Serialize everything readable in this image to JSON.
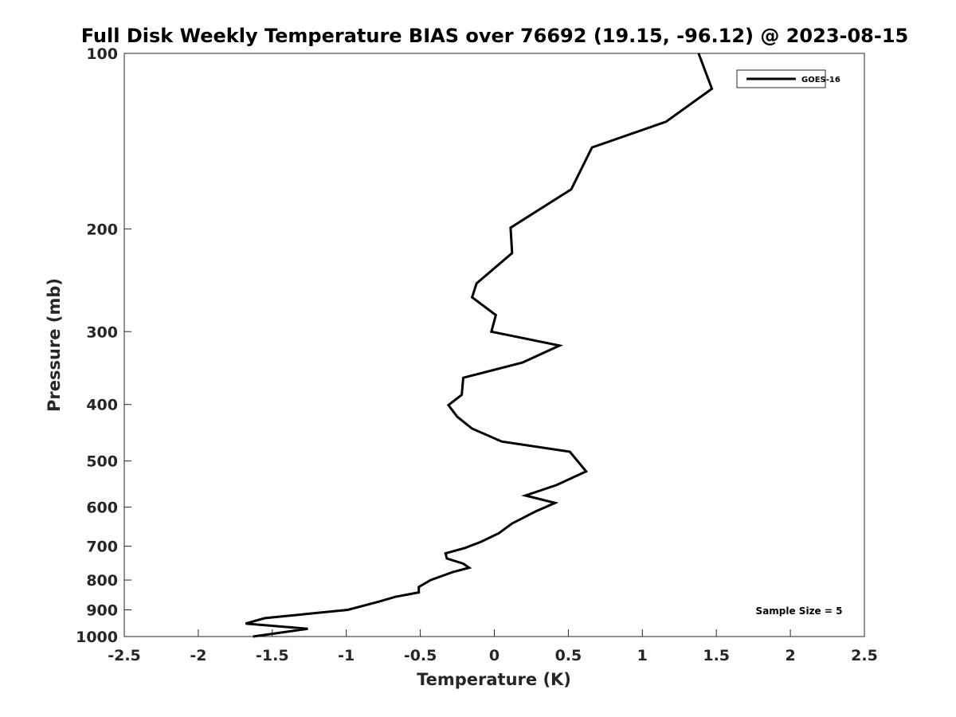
{
  "chart_data": {
    "type": "line",
    "title": "Full Disk Weekly Temperature BIAS over 76692 (19.15, -96.12) @ 2023-08-15",
    "xlabel": "Temperature (K)",
    "ylabel": "Pressure (mb)",
    "xlim": [
      -2.5,
      2.5
    ],
    "ylim": [
      1000,
      100
    ],
    "y_scale": "log",
    "y_reversed": true,
    "x_ticks": [
      -2.5,
      -2,
      -1.5,
      -1,
      -0.5,
      0,
      0.5,
      1,
      1.5,
      2,
      2.5
    ],
    "x_tick_labels": [
      "-2.5",
      "-2",
      "-1.5",
      "-1",
      "-0.5",
      "0",
      "0.5",
      "1",
      "1.5",
      "2",
      "2.5"
    ],
    "y_ticks": [
      100,
      200,
      300,
      400,
      500,
      600,
      700,
      800,
      900,
      1000
    ],
    "y_tick_labels": [
      "100",
      "200",
      "300",
      "400",
      "500",
      "600",
      "700",
      "800",
      "900",
      "1000"
    ],
    "grid": false,
    "legend_position": "top-right",
    "series": [
      {
        "name": "GOES-16",
        "color": "#000000",
        "points": [
          [
            1.38,
            100
          ],
          [
            1.47,
            115
          ],
          [
            1.16,
            131
          ],
          [
            0.66,
            145
          ],
          [
            0.52,
            171
          ],
          [
            0.11,
            199
          ],
          [
            0.12,
            220
          ],
          [
            -0.12,
            248
          ],
          [
            -0.15,
            262
          ],
          [
            0.01,
            281
          ],
          [
            -0.02,
            300
          ],
          [
            0.44,
            317
          ],
          [
            0.19,
            339
          ],
          [
            -0.21,
            360
          ],
          [
            -0.22,
            385
          ],
          [
            -0.31,
            401
          ],
          [
            -0.25,
            420
          ],
          [
            -0.15,
            440
          ],
          [
            0.05,
            463
          ],
          [
            0.51,
            482
          ],
          [
            0.62,
            521
          ],
          [
            0.42,
            550
          ],
          [
            0.21,
            573
          ],
          [
            0.41,
            590
          ],
          [
            0.28,
            610
          ],
          [
            0.12,
            640
          ],
          [
            0.03,
            665
          ],
          [
            -0.09,
            688
          ],
          [
            -0.2,
            705
          ],
          [
            -0.33,
            720
          ],
          [
            -0.32,
            735
          ],
          [
            -0.21,
            750
          ],
          [
            -0.17,
            762
          ],
          [
            -0.28,
            775
          ],
          [
            -0.43,
            800
          ],
          [
            -0.51,
            822
          ],
          [
            -0.51,
            840
          ],
          [
            -0.67,
            855
          ],
          [
            -0.77,
            870
          ],
          [
            -0.99,
            900
          ],
          [
            -1.55,
            930
          ],
          [
            -1.68,
            950
          ],
          [
            -1.26,
            970
          ],
          [
            -1.63,
            1000
          ]
        ]
      }
    ],
    "annotations": [
      "Sample Size = 5"
    ]
  },
  "legend": {
    "label": "GOES-16"
  },
  "note": {
    "text": "Sample Size = 5"
  }
}
